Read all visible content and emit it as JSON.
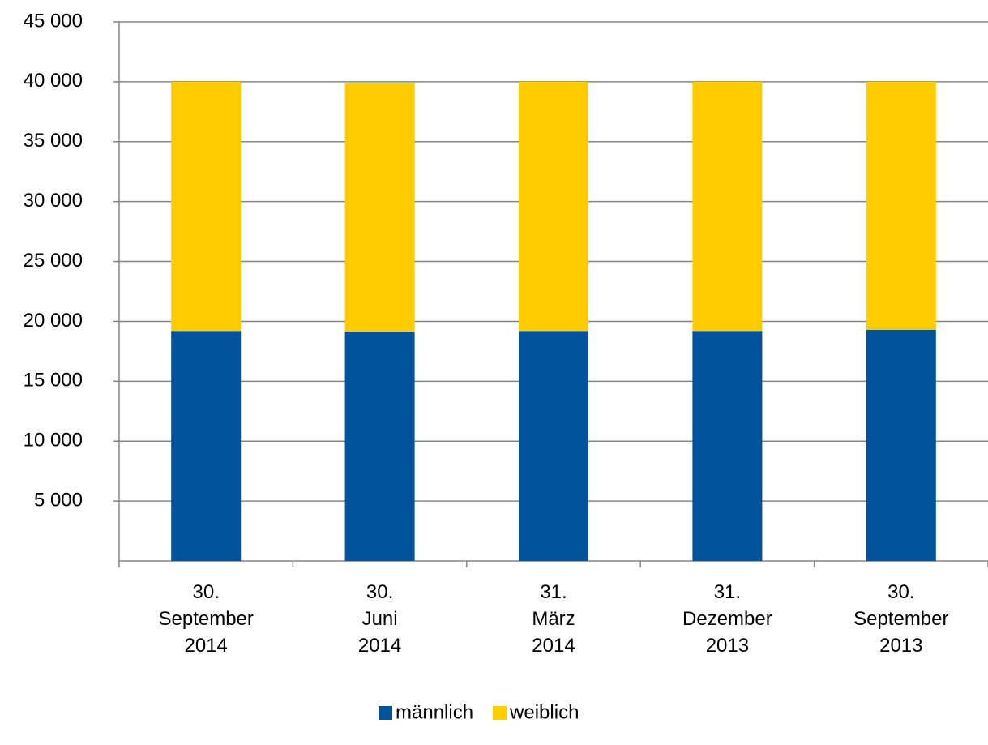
{
  "chart_data": {
    "type": "stacked-bar",
    "categories": [
      "30.\nSeptember\n2014",
      "30.\nJuni\n2014",
      "31.\nMärz\n2014",
      "31.\nDezember\n2013",
      "30.\nSeptember\n2013"
    ],
    "series": [
      {
        "name": "männlich",
        "color": "#00529b",
        "values": [
          19200,
          19150,
          19200,
          19200,
          19300
        ]
      },
      {
        "name": "weiblich",
        "color": "#ffcc00",
        "values": [
          20800,
          20700,
          20800,
          20800,
          20700
        ]
      }
    ],
    "ylim": [
      0,
      45000
    ],
    "yticks": [
      {
        "value": 5000,
        "label": "5 000"
      },
      {
        "value": 10000,
        "label": "10 000"
      },
      {
        "value": 15000,
        "label": "15 000"
      },
      {
        "value": 20000,
        "label": "20 000"
      },
      {
        "value": 25000,
        "label": "25 000"
      },
      {
        "value": 30000,
        "label": "30 000"
      },
      {
        "value": 35000,
        "label": "35 000"
      },
      {
        "value": 40000,
        "label": "40 000"
      },
      {
        "value": 45000,
        "label": "45 000"
      }
    ],
    "grid": true,
    "legend": "bottom"
  }
}
